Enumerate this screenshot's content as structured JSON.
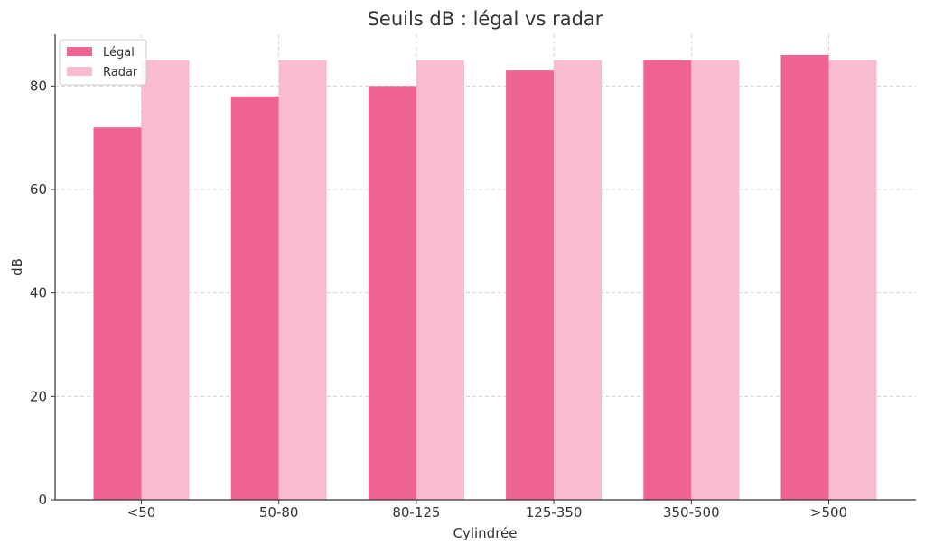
{
  "chart_data": {
    "type": "bar",
    "title": "Seuils dB : légal vs radar",
    "xlabel": "Cylindrée",
    "ylabel": "dB",
    "categories": [
      "<50",
      "50-80",
      "80-125",
      "125-350",
      "350-500",
      ">500"
    ],
    "series": [
      {
        "name": "Légal",
        "color": "#ef6492",
        "values": [
          72,
          78,
          80,
          83,
          85,
          86
        ]
      },
      {
        "name": "Radar",
        "color": "#f8bbd0",
        "values": [
          85,
          85,
          85,
          85,
          85,
          85
        ]
      }
    ],
    "ylim": [
      0,
      90
    ],
    "yticks": [
      0,
      20,
      40,
      60,
      80
    ],
    "grid": true,
    "legend_position": "top-left"
  }
}
